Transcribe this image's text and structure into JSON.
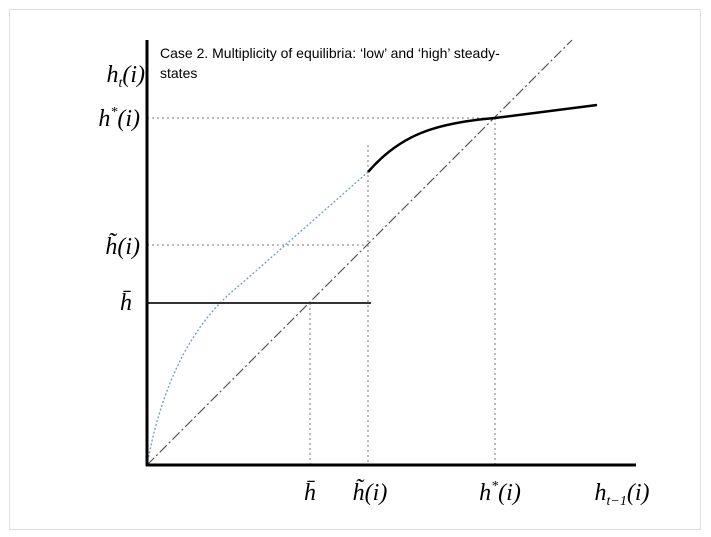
{
  "title": {
    "lines": [
      "Case 2. Multiplicity of equilibria: ‘low’ and ‘high’ steady-",
      "states"
    ]
  },
  "y_axis": {
    "label": {
      "base": "h",
      "sub": "t",
      "rest": "(i)"
    },
    "ticks": [
      {
        "base": "h",
        "sup": "*",
        "rest": "(i)"
      },
      {
        "text": "h̃(i)"
      },
      {
        "text": "h̄"
      }
    ]
  },
  "x_axis": {
    "label": {
      "base": "h",
      "sub": "t−1",
      "rest": "(i)"
    },
    "ticks": [
      {
        "text": "h̄"
      },
      {
        "text": "h̃(i)"
      },
      {
        "base": "h",
        "sup": "*",
        "rest": "(i)"
      }
    ]
  }
}
